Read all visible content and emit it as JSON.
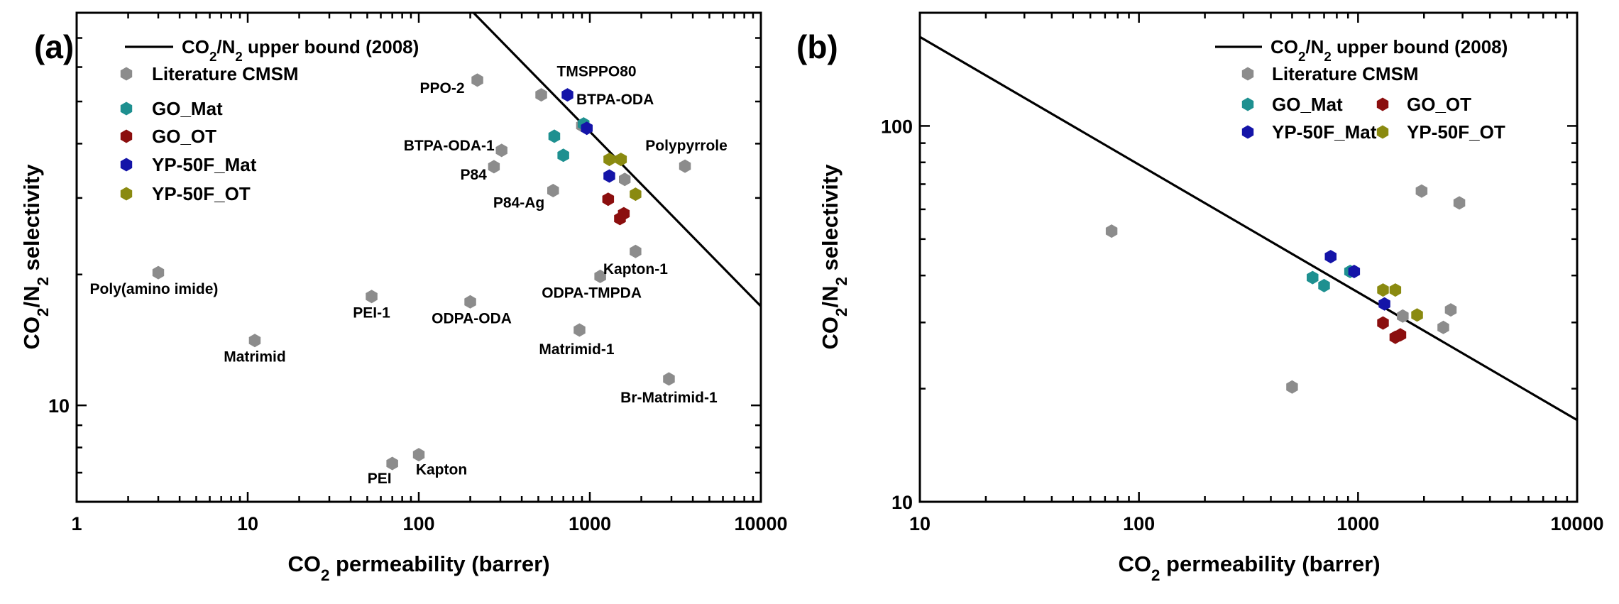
{
  "colors": {
    "literature": "#8c8c8c",
    "go_mat": "#1e9090",
    "go_ot": "#8b0e0e",
    "yp_mat": "#1414a8",
    "yp_ot": "#8a8a10",
    "line": "#000000"
  },
  "chart_data": [
    {
      "panel": "(a)",
      "type": "scatter",
      "xscale": "log",
      "yscale": "log",
      "xlim": [
        1,
        10000
      ],
      "ylim": [
        6,
        80
      ],
      "xlabel": {
        "main": "CO",
        "sub": "2",
        "rest": " permeability (barrer)"
      },
      "ylabel": {
        "a": "CO",
        "s1": "2",
        "b": "/N",
        "s2": "2",
        "c": " selectivity"
      },
      "xticks": [
        {
          "v": 1,
          "label": "1"
        },
        {
          "v": 10,
          "label": "10"
        },
        {
          "v": 100,
          "label": "100"
        },
        {
          "v": 1000,
          "label": "1000"
        },
        {
          "v": 10000,
          "label": "10000"
        }
      ],
      "yticks": [
        {
          "v": 10,
          "label": "10"
        }
      ],
      "upper_bound": {
        "x": [
          209,
          10000
        ],
        "y": [
          80,
          16.9
        ]
      },
      "legend": {
        "line": {
          "a": "CO",
          "s1": "2",
          "b": "/N",
          "s2": "2",
          "c": " upper bound (2008)"
        },
        "entries": [
          {
            "key": "literature",
            "label": "Literature CMSM"
          },
          {
            "key": "go_mat",
            "label": "GO_Mat"
          },
          {
            "key": "go_ot",
            "label": "GO_OT"
          },
          {
            "key": "yp_mat",
            "label": "YP-50F_Mat"
          },
          {
            "key": "yp_ot",
            "label": "YP-50F_OT"
          }
        ]
      },
      "series": [
        {
          "key": "literature",
          "name": "Literature CMSM",
          "points": [
            {
              "x": 3,
              "y": 20.2,
              "label": "Poly(amino imide)"
            },
            {
              "x": 11,
              "y": 14.1,
              "label": "Matrimid"
            },
            {
              "x": 53,
              "y": 17.8,
              "label": "PEI-1"
            },
            {
              "x": 70,
              "y": 7.35,
              "label": "PEI"
            },
            {
              "x": 100,
              "y": 7.7,
              "label": "Kapton"
            },
            {
              "x": 200,
              "y": 17.3,
              "label": "ODPA-ODA"
            },
            {
              "x": 220,
              "y": 56,
              "label": "PPO-2"
            },
            {
              "x": 275,
              "y": 35.4,
              "label": "P84"
            },
            {
              "x": 305,
              "y": 38.6,
              "label": "BTPA-ODA-1"
            },
            {
              "x": 520,
              "y": 51.8,
              "label": "TMSPPO80"
            },
            {
              "x": 610,
              "y": 31.2,
              "label": "P84-Ag"
            },
            {
              "x": 870,
              "y": 14.9,
              "label": "Matrimid-1"
            },
            {
              "x": 900,
              "y": 44,
              "label": "BTPA-ODA"
            },
            {
              "x": 1150,
              "y": 19.8,
              "label": "ODPA-TMPDA"
            },
            {
              "x": 1600,
              "y": 33.1,
              "label": ""
            },
            {
              "x": 1850,
              "y": 22.6,
              "label": "Kapton-1"
            },
            {
              "x": 2900,
              "y": 11.5,
              "label": "Br-Matrimid-1"
            },
            {
              "x": 3600,
              "y": 35.5,
              "label": "Polypyrrole"
            }
          ]
        },
        {
          "key": "go_mat",
          "name": "GO_Mat",
          "points": [
            {
              "x": 620,
              "y": 41.6
            },
            {
              "x": 700,
              "y": 37.6
            },
            {
              "x": 920,
              "y": 44.4
            }
          ]
        },
        {
          "key": "go_ot",
          "name": "GO_OT",
          "points": [
            {
              "x": 1280,
              "y": 29.8
            },
            {
              "x": 1500,
              "y": 26.9
            },
            {
              "x": 1580,
              "y": 27.6
            }
          ]
        },
        {
          "key": "yp_mat",
          "name": "YP-50F_Mat",
          "points": [
            {
              "x": 740,
              "y": 51.8
            },
            {
              "x": 960,
              "y": 43.4
            },
            {
              "x": 1300,
              "y": 33.7
            }
          ]
        },
        {
          "key": "yp_ot",
          "name": "YP-50F_OT",
          "points": [
            {
              "x": 1300,
              "y": 36.8
            },
            {
              "x": 1520,
              "y": 36.8
            },
            {
              "x": 1850,
              "y": 30.6
            }
          ]
        }
      ]
    },
    {
      "panel": "(b)",
      "type": "scatter",
      "xscale": "log",
      "yscale": "log",
      "xlim": [
        10,
        10000
      ],
      "ylim": [
        10,
        200
      ],
      "xlabel": {
        "main": "CO",
        "sub": "2",
        "rest": " permeability (barrer)"
      },
      "ylabel": {
        "a": "CO",
        "s1": "2",
        "b": "/N",
        "s2": "2",
        "c": " selectivity"
      },
      "xticks": [
        {
          "v": 10,
          "label": "10"
        },
        {
          "v": 100,
          "label": "100"
        },
        {
          "v": 1000,
          "label": "1000"
        },
        {
          "v": 10000,
          "label": "10000"
        }
      ],
      "yticks": [
        {
          "v": 10,
          "label": "10"
        },
        {
          "v": 100,
          "label": "100"
        }
      ],
      "upper_bound": {
        "x": [
          10,
          10000
        ],
        "y": [
          172.5,
          16.5
        ]
      },
      "legend": {
        "line": {
          "a": "CO",
          "s1": "2",
          "b": "/N",
          "s2": "2",
          "c": " upper bound (2008)"
        },
        "entries": [
          {
            "key": "literature",
            "label": "Literature CMSM"
          },
          {
            "key": "go_mat",
            "label": "GO_Mat"
          },
          {
            "key": "go_ot",
            "label": "GO_OT"
          },
          {
            "key": "yp_mat",
            "label": "YP-50F_Mat"
          },
          {
            "key": "yp_ot",
            "label": "YP-50F_OT"
          }
        ]
      },
      "series": [
        {
          "key": "literature",
          "name": "Literature CMSM",
          "points": [
            {
              "x": 75,
              "y": 52.5
            },
            {
              "x": 500,
              "y": 20.2
            },
            {
              "x": 1600,
              "y": 31.2
            },
            {
              "x": 1950,
              "y": 67.1
            },
            {
              "x": 2450,
              "y": 29.1
            },
            {
              "x": 2650,
              "y": 32.4
            },
            {
              "x": 2900,
              "y": 62.4
            }
          ]
        },
        {
          "key": "go_mat",
          "name": "GO_Mat",
          "points": [
            {
              "x": 620,
              "y": 39.5
            },
            {
              "x": 700,
              "y": 37.6
            },
            {
              "x": 920,
              "y": 41.0
            }
          ]
        },
        {
          "key": "go_ot",
          "name": "GO_OT",
          "points": [
            {
              "x": 1300,
              "y": 29.9
            },
            {
              "x": 1480,
              "y": 27.4
            },
            {
              "x": 1560,
              "y": 27.8
            }
          ]
        },
        {
          "key": "yp_mat",
          "name": "YP-50F_Mat",
          "points": [
            {
              "x": 750,
              "y": 44.9
            },
            {
              "x": 960,
              "y": 41.0
            },
            {
              "x": 1320,
              "y": 33.6
            }
          ]
        },
        {
          "key": "yp_ot",
          "name": "YP-50F_OT",
          "points": [
            {
              "x": 1300,
              "y": 36.6
            },
            {
              "x": 1480,
              "y": 36.6
            },
            {
              "x": 1860,
              "y": 31.4
            }
          ]
        }
      ]
    }
  ]
}
